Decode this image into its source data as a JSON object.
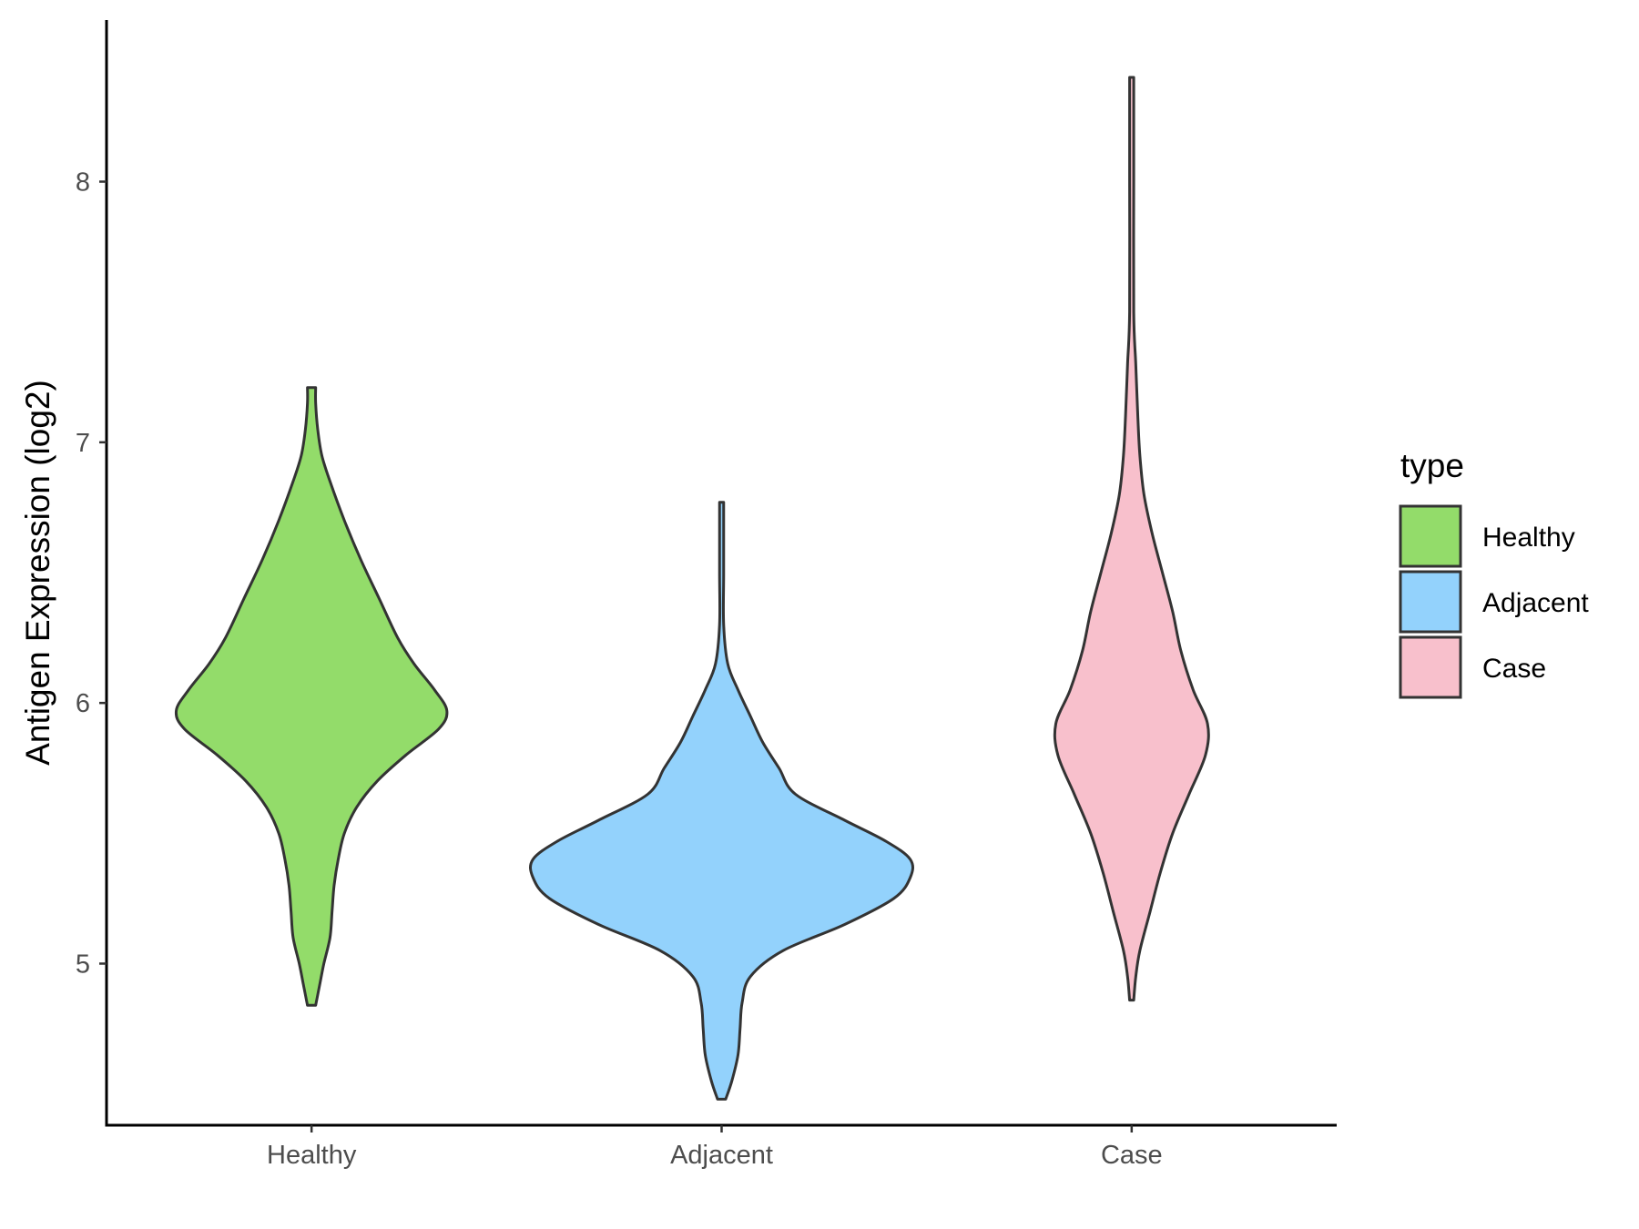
{
  "chart_data": {
    "type": "violin",
    "categories": [
      "Healthy",
      "Adjacent",
      "Case"
    ],
    "ylabel": "Antigen Expression (log2)",
    "xlabel": "",
    "ylim": [
      4.38,
      8.62
    ],
    "yticks": [
      5,
      6,
      7,
      8
    ],
    "grid": false,
    "legend": {
      "title": "type",
      "position": "right",
      "entries": [
        "Healthy",
        "Adjacent",
        "Case"
      ]
    },
    "colors": {
      "Healthy": "#93dc6a",
      "Adjacent": "#93d2fc",
      "Case": "#f8c0cc"
    },
    "series": [
      {
        "category": "Healthy",
        "min": 4.84,
        "max": 7.21,
        "density": [
          [
            4.84,
            0.02
          ],
          [
            4.92,
            0.04
          ],
          [
            5.0,
            0.06
          ],
          [
            5.1,
            0.09
          ],
          [
            5.2,
            0.1
          ],
          [
            5.3,
            0.11
          ],
          [
            5.4,
            0.13
          ],
          [
            5.5,
            0.16
          ],
          [
            5.6,
            0.22
          ],
          [
            5.7,
            0.32
          ],
          [
            5.8,
            0.46
          ],
          [
            5.9,
            0.62
          ],
          [
            5.97,
            0.66
          ],
          [
            6.05,
            0.6
          ],
          [
            6.15,
            0.5
          ],
          [
            6.25,
            0.42
          ],
          [
            6.4,
            0.33
          ],
          [
            6.55,
            0.24
          ],
          [
            6.7,
            0.16
          ],
          [
            6.85,
            0.09
          ],
          [
            6.95,
            0.05
          ],
          [
            7.05,
            0.03
          ],
          [
            7.15,
            0.02
          ],
          [
            7.21,
            0.02
          ]
        ]
      },
      {
        "category": "Adjacent",
        "min": 4.48,
        "max": 6.77,
        "density": [
          [
            4.48,
            0.02
          ],
          [
            4.55,
            0.05
          ],
          [
            4.65,
            0.08
          ],
          [
            4.75,
            0.09
          ],
          [
            4.85,
            0.1
          ],
          [
            4.95,
            0.14
          ],
          [
            5.05,
            0.3
          ],
          [
            5.15,
            0.6
          ],
          [
            5.25,
            0.84
          ],
          [
            5.33,
            0.92
          ],
          [
            5.4,
            0.92
          ],
          [
            5.47,
            0.8
          ],
          [
            5.55,
            0.6
          ],
          [
            5.65,
            0.36
          ],
          [
            5.75,
            0.28
          ],
          [
            5.85,
            0.2
          ],
          [
            5.95,
            0.14
          ],
          [
            6.05,
            0.08
          ],
          [
            6.15,
            0.03
          ],
          [
            6.3,
            0.01
          ],
          [
            6.5,
            0.01
          ],
          [
            6.77,
            0.01
          ]
        ]
      },
      {
        "category": "Case",
        "min": 4.86,
        "max": 8.4,
        "density": [
          [
            4.86,
            0.01
          ],
          [
            4.95,
            0.02
          ],
          [
            5.05,
            0.04
          ],
          [
            5.2,
            0.09
          ],
          [
            5.35,
            0.14
          ],
          [
            5.5,
            0.2
          ],
          [
            5.65,
            0.28
          ],
          [
            5.8,
            0.36
          ],
          [
            5.92,
            0.37
          ],
          [
            6.05,
            0.3
          ],
          [
            6.2,
            0.24
          ],
          [
            6.35,
            0.2
          ],
          [
            6.5,
            0.15
          ],
          [
            6.65,
            0.1
          ],
          [
            6.8,
            0.06
          ],
          [
            6.95,
            0.04
          ],
          [
            7.1,
            0.03
          ],
          [
            7.3,
            0.02
          ],
          [
            7.5,
            0.01
          ],
          [
            8.0,
            0.01
          ],
          [
            8.4,
            0.01
          ]
        ]
      }
    ]
  }
}
